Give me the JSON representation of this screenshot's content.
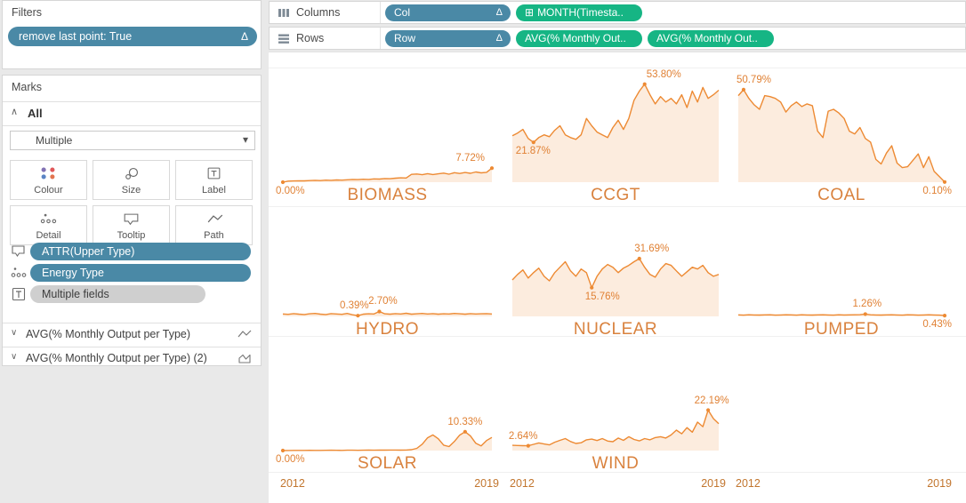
{
  "icons": {
    "delta": "Δ",
    "caret_down": "▾",
    "chevron_up": "∧",
    "chevron_down": "∨",
    "plus_box": "⊞"
  },
  "colors": {
    "pill_blue": "#4A89A6",
    "pill_green": "#16B584",
    "pill_gray": "#CFCFCF",
    "line_orange": "#ED8A33",
    "area_fill": "rgba(237,138,51,0.16)",
    "annotation_orange": "#E08134",
    "title_orange": "#D9823E",
    "year_orange": "#C2762F"
  },
  "sidebar": {
    "filters": {
      "title": "Filters",
      "pill": "remove last point: True"
    },
    "marks": {
      "title": "Marks",
      "section_all": "All",
      "mark_type": "Multiple",
      "buttons": [
        {
          "label": "Colour"
        },
        {
          "label": "Size"
        },
        {
          "label": "Label"
        },
        {
          "label": "Detail"
        },
        {
          "label": "Tooltip"
        },
        {
          "label": "Path"
        }
      ],
      "pills": [
        {
          "icon": "tooltip-icon",
          "label": "ATTR(Upper Type)"
        },
        {
          "icon": "detail-icon",
          "label": "Energy Type"
        },
        {
          "icon": "label-icon",
          "label": "Multiple fields"
        }
      ],
      "measures": [
        {
          "label": "AVG(% Monthly Output per Type)",
          "icon": "line-chart-icon"
        },
        {
          "label": "AVG(% Monthly Output per Type) (2)",
          "icon": "area-chart-icon"
        }
      ]
    }
  },
  "shelves": {
    "columns": {
      "label": "Columns",
      "pills": [
        {
          "label": "Col",
          "type": "blue",
          "delta": true
        },
        {
          "label": "MONTH(Timesta..",
          "type": "green",
          "plus": true
        }
      ]
    },
    "rows": {
      "label": "Rows",
      "pills": [
        {
          "label": "Row",
          "type": "blue",
          "delta": true
        },
        {
          "label": "AVG(% Monthly Out..",
          "type": "green"
        },
        {
          "label": "AVG(% Monthly Out..",
          "type": "green"
        }
      ]
    }
  },
  "chart_data": {
    "type": "area",
    "y_unit": "percent",
    "x_range": [
      "2012",
      "2019"
    ],
    "x_axis_note": "monthly, 2012 to 2019, last point removed",
    "grid_titles": [
      [
        "BIOMASS",
        "CCGT",
        "COAL"
      ],
      [
        "HYDRO",
        "NUCLEAR",
        "PUMPED"
      ],
      [
        "SOLAR",
        "WIND",
        null
      ]
    ],
    "series": [
      {
        "name": "BIOMASS",
        "row": 0,
        "col": 0,
        "values": [
          0.0,
          0.6,
          0.7,
          0.8,
          0.75,
          0.9,
          1.0,
          0.9,
          1.1,
          1.0,
          1.2,
          1.1,
          1.3,
          1.5,
          1.4,
          1.6,
          1.5,
          1.8,
          1.7,
          2.0,
          1.9,
          2.2,
          2.4,
          2.3,
          4.3,
          4.5,
          4.1,
          4.7,
          4.2,
          4.6,
          5.0,
          4.4,
          5.2,
          4.8,
          5.3,
          4.9,
          5.6,
          5.1,
          5.4,
          7.72
        ],
        "annotations": [
          {
            "t": "0.00%",
            "f": 0.0,
            "v": 0.0,
            "pos": "below",
            "align": "left",
            "dx": -8
          },
          {
            "t": "7.72%",
            "f": 1.0,
            "v": 7.72,
            "pos": "above",
            "align": "right",
            "dx": -8
          }
        ]
      },
      {
        "name": "CCGT",
        "row": 0,
        "col": 1,
        "values": [
          25.5,
          27,
          29,
          24,
          21.87,
          24.5,
          26,
          25,
          28.5,
          31,
          26,
          24.5,
          23.5,
          26,
          35,
          31,
          27.5,
          26,
          24.5,
          30,
          34,
          29,
          35,
          45,
          50,
          53.8,
          48,
          43,
          47,
          44,
          46,
          43,
          48,
          41,
          50,
          44,
          52,
          46,
          48,
          50.5
        ],
        "annotations": [
          {
            "t": "21.87%",
            "f": 0.1026,
            "v": 21.87,
            "pos": "below",
            "align": "left",
            "dx": -20
          },
          {
            "t": "53.80%",
            "f": 0.641,
            "v": 53.8,
            "pos": "above",
            "align": "left",
            "dx": 2
          }
        ]
      },
      {
        "name": "COAL",
        "row": 0,
        "col": 2,
        "values": [
          47.5,
          50.79,
          46,
          42.5,
          40,
          47.5,
          47,
          46,
          44,
          38.5,
          42,
          44,
          41.5,
          43,
          42,
          28,
          24.5,
          39,
          40,
          38,
          35,
          28,
          26.5,
          30,
          24,
          22,
          12.5,
          10,
          16,
          20,
          10.5,
          8,
          8.5,
          12,
          15.5,
          8,
          14,
          6,
          3,
          0.1
        ],
        "annotations": [
          {
            "t": "50.79%",
            "f": 0.0256,
            "v": 50.79,
            "pos": "above",
            "align": "left",
            "dx": -8
          },
          {
            "t": "0.10%",
            "f": 1.0,
            "v": 0.1,
            "pos": "below",
            "align": "right",
            "dx": 8
          }
        ]
      },
      {
        "name": "HYDRO",
        "row": 1,
        "col": 0,
        "values": [
          1.3,
          1.1,
          1.5,
          1.2,
          1.0,
          1.4,
          1.6,
          1.2,
          1.0,
          1.5,
          1.3,
          1.1,
          1.6,
          0.9,
          0.39,
          1.2,
          1.4,
          1.3,
          2.7,
          1.4,
          1.2,
          1.5,
          1.3,
          1.7,
          1.2,
          1.4,
          1.6,
          1.3,
          1.5,
          1.2,
          1.4,
          1.3,
          1.6,
          1.4,
          1.2,
          1.5,
          1.3,
          1.4,
          1.5,
          1.3
        ],
        "annotations": [
          {
            "t": "0.39%",
            "f": 0.359,
            "v": 0.39,
            "pos": "above",
            "align": "center",
            "dx": -4
          },
          {
            "t": "2.70%",
            "f": 0.4615,
            "v": 2.7,
            "pos": "above",
            "align": "center",
            "dx": 4
          }
        ]
      },
      {
        "name": "NUCLEAR",
        "row": 1,
        "col": 1,
        "values": [
          20,
          23,
          25.5,
          21,
          24,
          26.5,
          22,
          19.5,
          24,
          27,
          30,
          25,
          22,
          26,
          24,
          15.76,
          22,
          26,
          28.5,
          27,
          24,
          26.5,
          28,
          30,
          31.69,
          27,
          23,
          21.5,
          26,
          29,
          28,
          25,
          22,
          24.5,
          27,
          26,
          28,
          24,
          22,
          23
        ],
        "annotations": [
          {
            "t": "15.76%",
            "f": 0.3846,
            "v": 15.76,
            "pos": "below",
            "align": "center",
            "dx": 12
          },
          {
            "t": "31.69%",
            "f": 0.6154,
            "v": 31.69,
            "pos": "above",
            "align": "center",
            "dx": 14
          }
        ]
      },
      {
        "name": "PUMPED",
        "row": 1,
        "col": 2,
        "values": [
          0.85,
          0.7,
          0.9,
          0.8,
          0.75,
          0.85,
          0.9,
          0.7,
          0.8,
          0.9,
          0.85,
          0.7,
          0.9,
          0.8,
          0.75,
          0.85,
          0.9,
          0.8,
          0.7,
          0.9,
          0.8,
          0.85,
          0.9,
          0.95,
          1.26,
          0.9,
          0.8,
          0.75,
          0.85,
          0.9,
          0.8,
          0.7,
          0.9,
          0.85,
          0.7,
          0.8,
          0.9,
          0.8,
          0.7,
          0.43
        ],
        "annotations": [
          {
            "t": "1.26%",
            "f": 0.6154,
            "v": 1.26,
            "pos": "above",
            "align": "center",
            "dx": 2
          },
          {
            "t": "0.43%",
            "f": 1.0,
            "v": 0.43,
            "pos": "below",
            "align": "right",
            "dx": 8
          }
        ]
      },
      {
        "name": "SOLAR",
        "row": 2,
        "col": 0,
        "values": [
          0.0,
          0.05,
          0.1,
          0.1,
          0.12,
          0.15,
          0.1,
          0.12,
          0.15,
          0.2,
          0.15,
          0.12,
          0.2,
          0.18,
          0.15,
          0.2,
          0.25,
          0.2,
          0.22,
          0.25,
          0.3,
          0.28,
          0.25,
          0.3,
          0.5,
          1.2,
          3.5,
          7.0,
          8.6,
          6.5,
          3.0,
          2.2,
          5.0,
          8.5,
          10.33,
          8.0,
          4.0,
          2.6,
          5.5,
          7.2
        ],
        "annotations": [
          {
            "t": "0.00%",
            "f": 0.0,
            "v": 0.0,
            "pos": "below",
            "align": "left",
            "dx": -8
          },
          {
            "t": "10.33%",
            "f": 0.8718,
            "v": 10.33,
            "pos": "above",
            "align": "center",
            "dx": 0
          }
        ]
      },
      {
        "name": "WIND",
        "row": 2,
        "col": 1,
        "values": [
          2.9,
          2.8,
          2.7,
          2.64,
          3.4,
          4.2,
          3.6,
          3.1,
          4.6,
          5.6,
          6.6,
          5.0,
          3.9,
          4.3,
          5.9,
          6.3,
          5.5,
          6.6,
          5.2,
          4.9,
          6.9,
          5.6,
          7.6,
          6.1,
          5.3,
          6.6,
          5.9,
          7.1,
          7.6,
          6.9,
          8.6,
          11.2,
          9.2,
          12.6,
          10.1,
          15.6,
          13.1,
          22.19,
          17.5,
          14.8
        ],
        "annotations": [
          {
            "t": "2.64%",
            "f": 0.0769,
            "v": 2.64,
            "pos": "above",
            "align": "left",
            "dx": -22
          },
          {
            "t": "22.19%",
            "f": 0.9487,
            "v": 22.19,
            "pos": "above",
            "align": "center",
            "dx": 4
          }
        ]
      }
    ]
  }
}
